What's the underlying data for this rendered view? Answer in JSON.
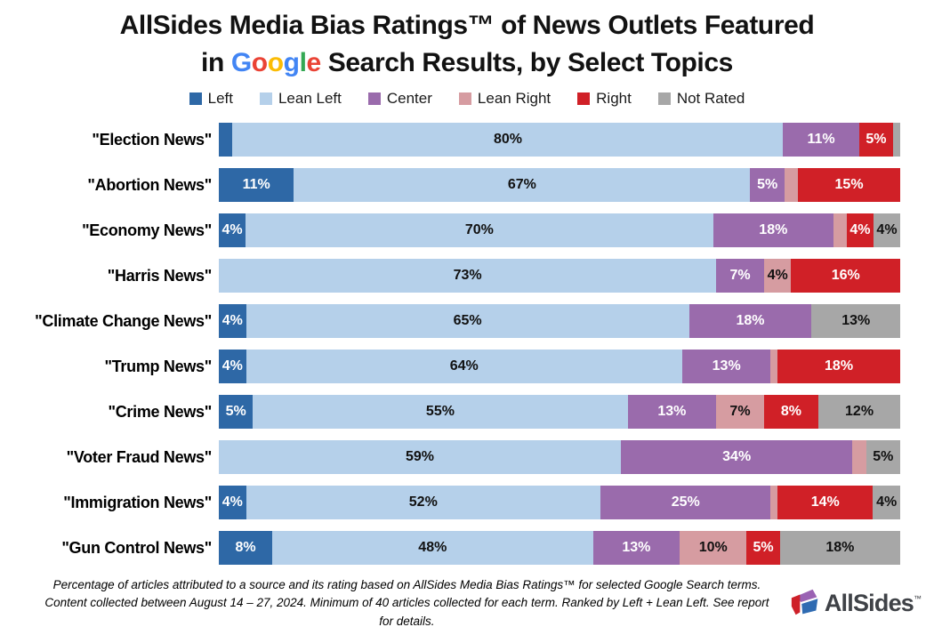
{
  "title": {
    "line1": "AllSides Media Bias Ratings™ of News Outlets Featured",
    "line2_pre": "in ",
    "line2_post": " Search Results, by Select Topics"
  },
  "google_wordmark": [
    {
      "ch": "G",
      "color": "#4285F4"
    },
    {
      "ch": "o",
      "color": "#EA4335"
    },
    {
      "ch": "o",
      "color": "#FBBC05"
    },
    {
      "ch": "g",
      "color": "#4285F4"
    },
    {
      "ch": "l",
      "color": "#34A853"
    },
    {
      "ch": "e",
      "color": "#EA4335"
    }
  ],
  "legend": [
    {
      "label": "Left",
      "color": "#2E68A6"
    },
    {
      "label": "Lean Left",
      "color": "#B5D0EA"
    },
    {
      "label": "Center",
      "color": "#9A6BAC"
    },
    {
      "label": "Lean Right",
      "color": "#D69CA1"
    },
    {
      "label": "Right",
      "color": "#D02027"
    },
    {
      "label": "Not Rated",
      "color": "#A7A7A7"
    }
  ],
  "chart_data": {
    "type": "bar",
    "orientation": "horizontal-stacked-100pct",
    "title": "AllSides Media Bias Ratings™ of News Outlets Featured in Google Search Results, by Select Topics",
    "legend_position": "top",
    "value_suffix": "%",
    "label_min_value": 4,
    "categories": [
      "\"Election News\"",
      "\"Abortion News\"",
      "\"Economy News\"",
      "\"Harris News\"",
      "\"Climate Change News\"",
      "\"Trump News\"",
      "\"Crime News\"",
      "\"Voter Fraud News\"",
      "\"Immigration News\"",
      "\"Gun Control News\""
    ],
    "series": [
      {
        "name": "Left",
        "color": "#2E68A6",
        "text_color": "#FFFFFF",
        "values": [
          2,
          11,
          4,
          0,
          4,
          4,
          5,
          0,
          4,
          8
        ]
      },
      {
        "name": "Lean Left",
        "color": "#B5D0EA",
        "text_color": "#111111",
        "values": [
          80,
          67,
          70,
          73,
          65,
          64,
          55,
          59,
          52,
          48
        ]
      },
      {
        "name": "Center",
        "color": "#9A6BAC",
        "text_color": "#FFFFFF",
        "values": [
          11,
          5,
          18,
          7,
          18,
          13,
          13,
          34,
          25,
          13
        ]
      },
      {
        "name": "Lean Right",
        "color": "#D69CA1",
        "text_color": "#111111",
        "values": [
          0,
          2,
          2,
          4,
          0,
          1,
          7,
          2,
          1,
          10
        ]
      },
      {
        "name": "Right",
        "color": "#D02027",
        "text_color": "#FFFFFF",
        "values": [
          5,
          15,
          4,
          16,
          0,
          18,
          8,
          0,
          14,
          5
        ]
      },
      {
        "name": "Not Rated",
        "color": "#A7A7A7",
        "text_color": "#111111",
        "values": [
          1,
          0,
          4,
          0,
          13,
          0,
          12,
          5,
          4,
          18
        ]
      }
    ]
  },
  "footer": {
    "note": "Percentage of articles attributed to a source and its rating based on AllSides Media Bias Ratings™ for selected Google Search terms. Content collected between August 14 – 27, 2024. Minimum of 40 articles collected for each term. Ranked by Left + Lean Left. See report for details.",
    "logo_text": "AllSides",
    "logo_tm": "™"
  }
}
